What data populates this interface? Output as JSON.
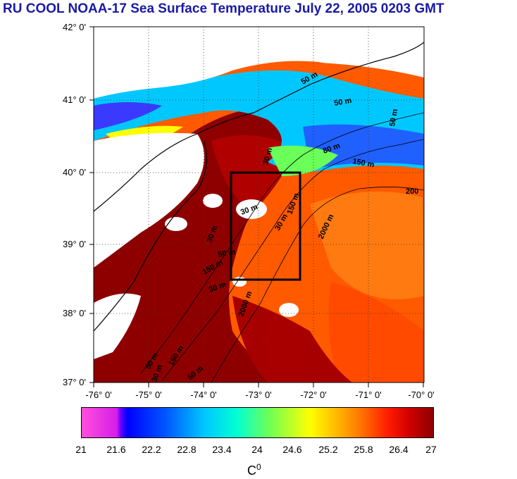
{
  "title": "RU COOL  NOAA-17 Sea Surface Temperature July 22, 2005 0203 GMT",
  "map": {
    "latitude_labels": [
      "42° 0'",
      "41° 0'",
      "40° 0'",
      "39° 0'",
      "38° 0'",
      "37° 0'"
    ],
    "longitude_labels": [
      "-76° 0'",
      "-75° 0'",
      "-74° 0'",
      "-73° 0'",
      "-72° 0'",
      "-71° 0'",
      "-70° 0'"
    ],
    "grid": "dotted",
    "contour_labels": [
      "50 m",
      "50 m",
      "50 m",
      "80 m",
      "150 m",
      "30 m",
      "30 m",
      "30 m",
      "150 m",
      "50 m",
      "30 m",
      "150 m",
      "2000 m",
      "200",
      "2000 m",
      "30 m",
      "50 m",
      "150 m",
      "50 m",
      "30 m"
    ],
    "study_box": {
      "lon_min": -73.5,
      "lon_max": -72.2,
      "lat_min": 38.5,
      "lat_max": 40.0
    }
  },
  "colorbar": {
    "ticks": [
      "21",
      "21.6",
      "22.2",
      "22.8",
      "23.4",
      "24",
      "24.6",
      "25.2",
      "25.8",
      "26.4",
      "27"
    ],
    "unit_label": "C",
    "unit_superscript": "0",
    "range": [
      21,
      27
    ]
  },
  "colors": {
    "title": "#1a1aa6",
    "land_cloud": "#ffffff",
    "warm_water": "#8e0000",
    "offshore_water": "#ff5a00",
    "cool_water": "#00c8ff"
  }
}
